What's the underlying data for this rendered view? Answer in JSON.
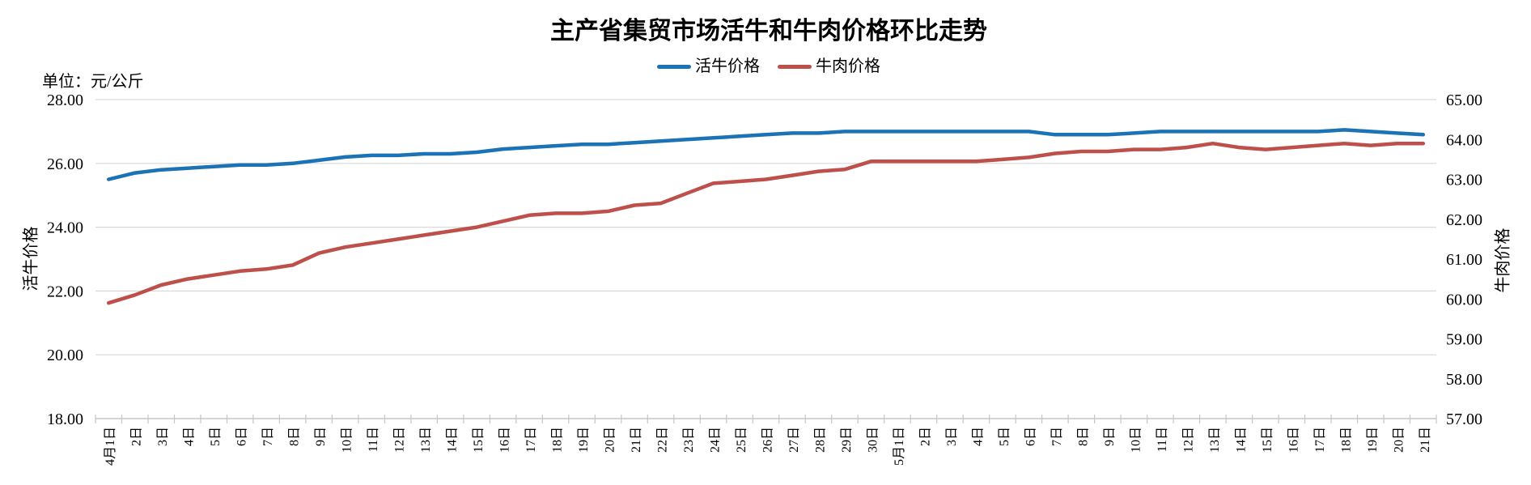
{
  "title": "主产省集贸市场活牛和牛肉价格环比走势",
  "unit_label": "单位：元/公斤",
  "legend": [
    {
      "label": "活牛价格",
      "color": "#1B73B6"
    },
    {
      "label": "牛肉价格",
      "color": "#BE504B"
    }
  ],
  "colors": {
    "live_cattle_line": "#1B73B6",
    "beef_line": "#BE504B",
    "gridline": "#D9D9D9",
    "axis": "#C6C6C6"
  },
  "chart_data": {
    "type": "line",
    "title": "主产省集贸市场活牛和牛肉价格环比走势",
    "unit": "单位：元/公斤",
    "grid": true,
    "legend_position": "top",
    "categories": [
      "4月1日",
      "2日",
      "3日",
      "4日",
      "5日",
      "6日",
      "7日",
      "8日",
      "9日",
      "10日",
      "11日",
      "12日",
      "13日",
      "14日",
      "15日",
      "16日",
      "17日",
      "18日",
      "19日",
      "20日",
      "21日",
      "22日",
      "23日",
      "24日",
      "25日",
      "26日",
      "27日",
      "28日",
      "29日",
      "30日",
      "5月1日",
      "2日",
      "3日",
      "4日",
      "5日",
      "6日",
      "7日",
      "8日",
      "9日",
      "10日",
      "11日",
      "12日",
      "13日",
      "14日",
      "15日",
      "16日",
      "17日",
      "18日",
      "19日",
      "20日",
      "21日"
    ],
    "left_axis": {
      "title": "活牛价格",
      "min": 18,
      "max": 28,
      "tick_step": 2,
      "tick_format_decimals": 2
    },
    "right_axis": {
      "title": "牛肉价格",
      "min": 57,
      "max": 65,
      "tick_step": 1,
      "tick_format_decimals": 2
    },
    "series": [
      {
        "name": "活牛价格",
        "axis": "left",
        "color": "#1B73B6",
        "values": [
          25.5,
          25.7,
          25.8,
          25.85,
          25.9,
          25.95,
          25.95,
          26.0,
          26.1,
          26.2,
          26.25,
          26.25,
          26.3,
          26.3,
          26.35,
          26.45,
          26.5,
          26.55,
          26.6,
          26.6,
          26.65,
          26.7,
          26.75,
          26.8,
          26.85,
          26.9,
          26.95,
          26.95,
          27.0,
          27.0,
          27.0,
          27.0,
          27.0,
          27.0,
          27.0,
          27.0,
          26.9,
          26.9,
          26.9,
          26.95,
          27.0,
          27.0,
          27.0,
          27.0,
          27.0,
          27.0,
          27.0,
          27.05,
          27.0,
          26.95,
          26.9
        ]
      },
      {
        "name": "牛肉价格",
        "axis": "right",
        "color": "#BE504B",
        "values": [
          59.9,
          60.1,
          60.35,
          60.5,
          60.6,
          60.7,
          60.75,
          60.85,
          61.15,
          61.3,
          61.4,
          61.5,
          61.6,
          61.7,
          61.8,
          61.95,
          62.1,
          62.15,
          62.15,
          62.2,
          62.35,
          62.4,
          62.65,
          62.9,
          62.95,
          63.0,
          63.1,
          63.2,
          63.25,
          63.45,
          63.45,
          63.45,
          63.45,
          63.45,
          63.5,
          63.55,
          63.65,
          63.7,
          63.7,
          63.75,
          63.75,
          63.8,
          63.9,
          63.8,
          63.75,
          63.8,
          63.85,
          63.9,
          63.85,
          63.9,
          63.9
        ]
      }
    ]
  }
}
